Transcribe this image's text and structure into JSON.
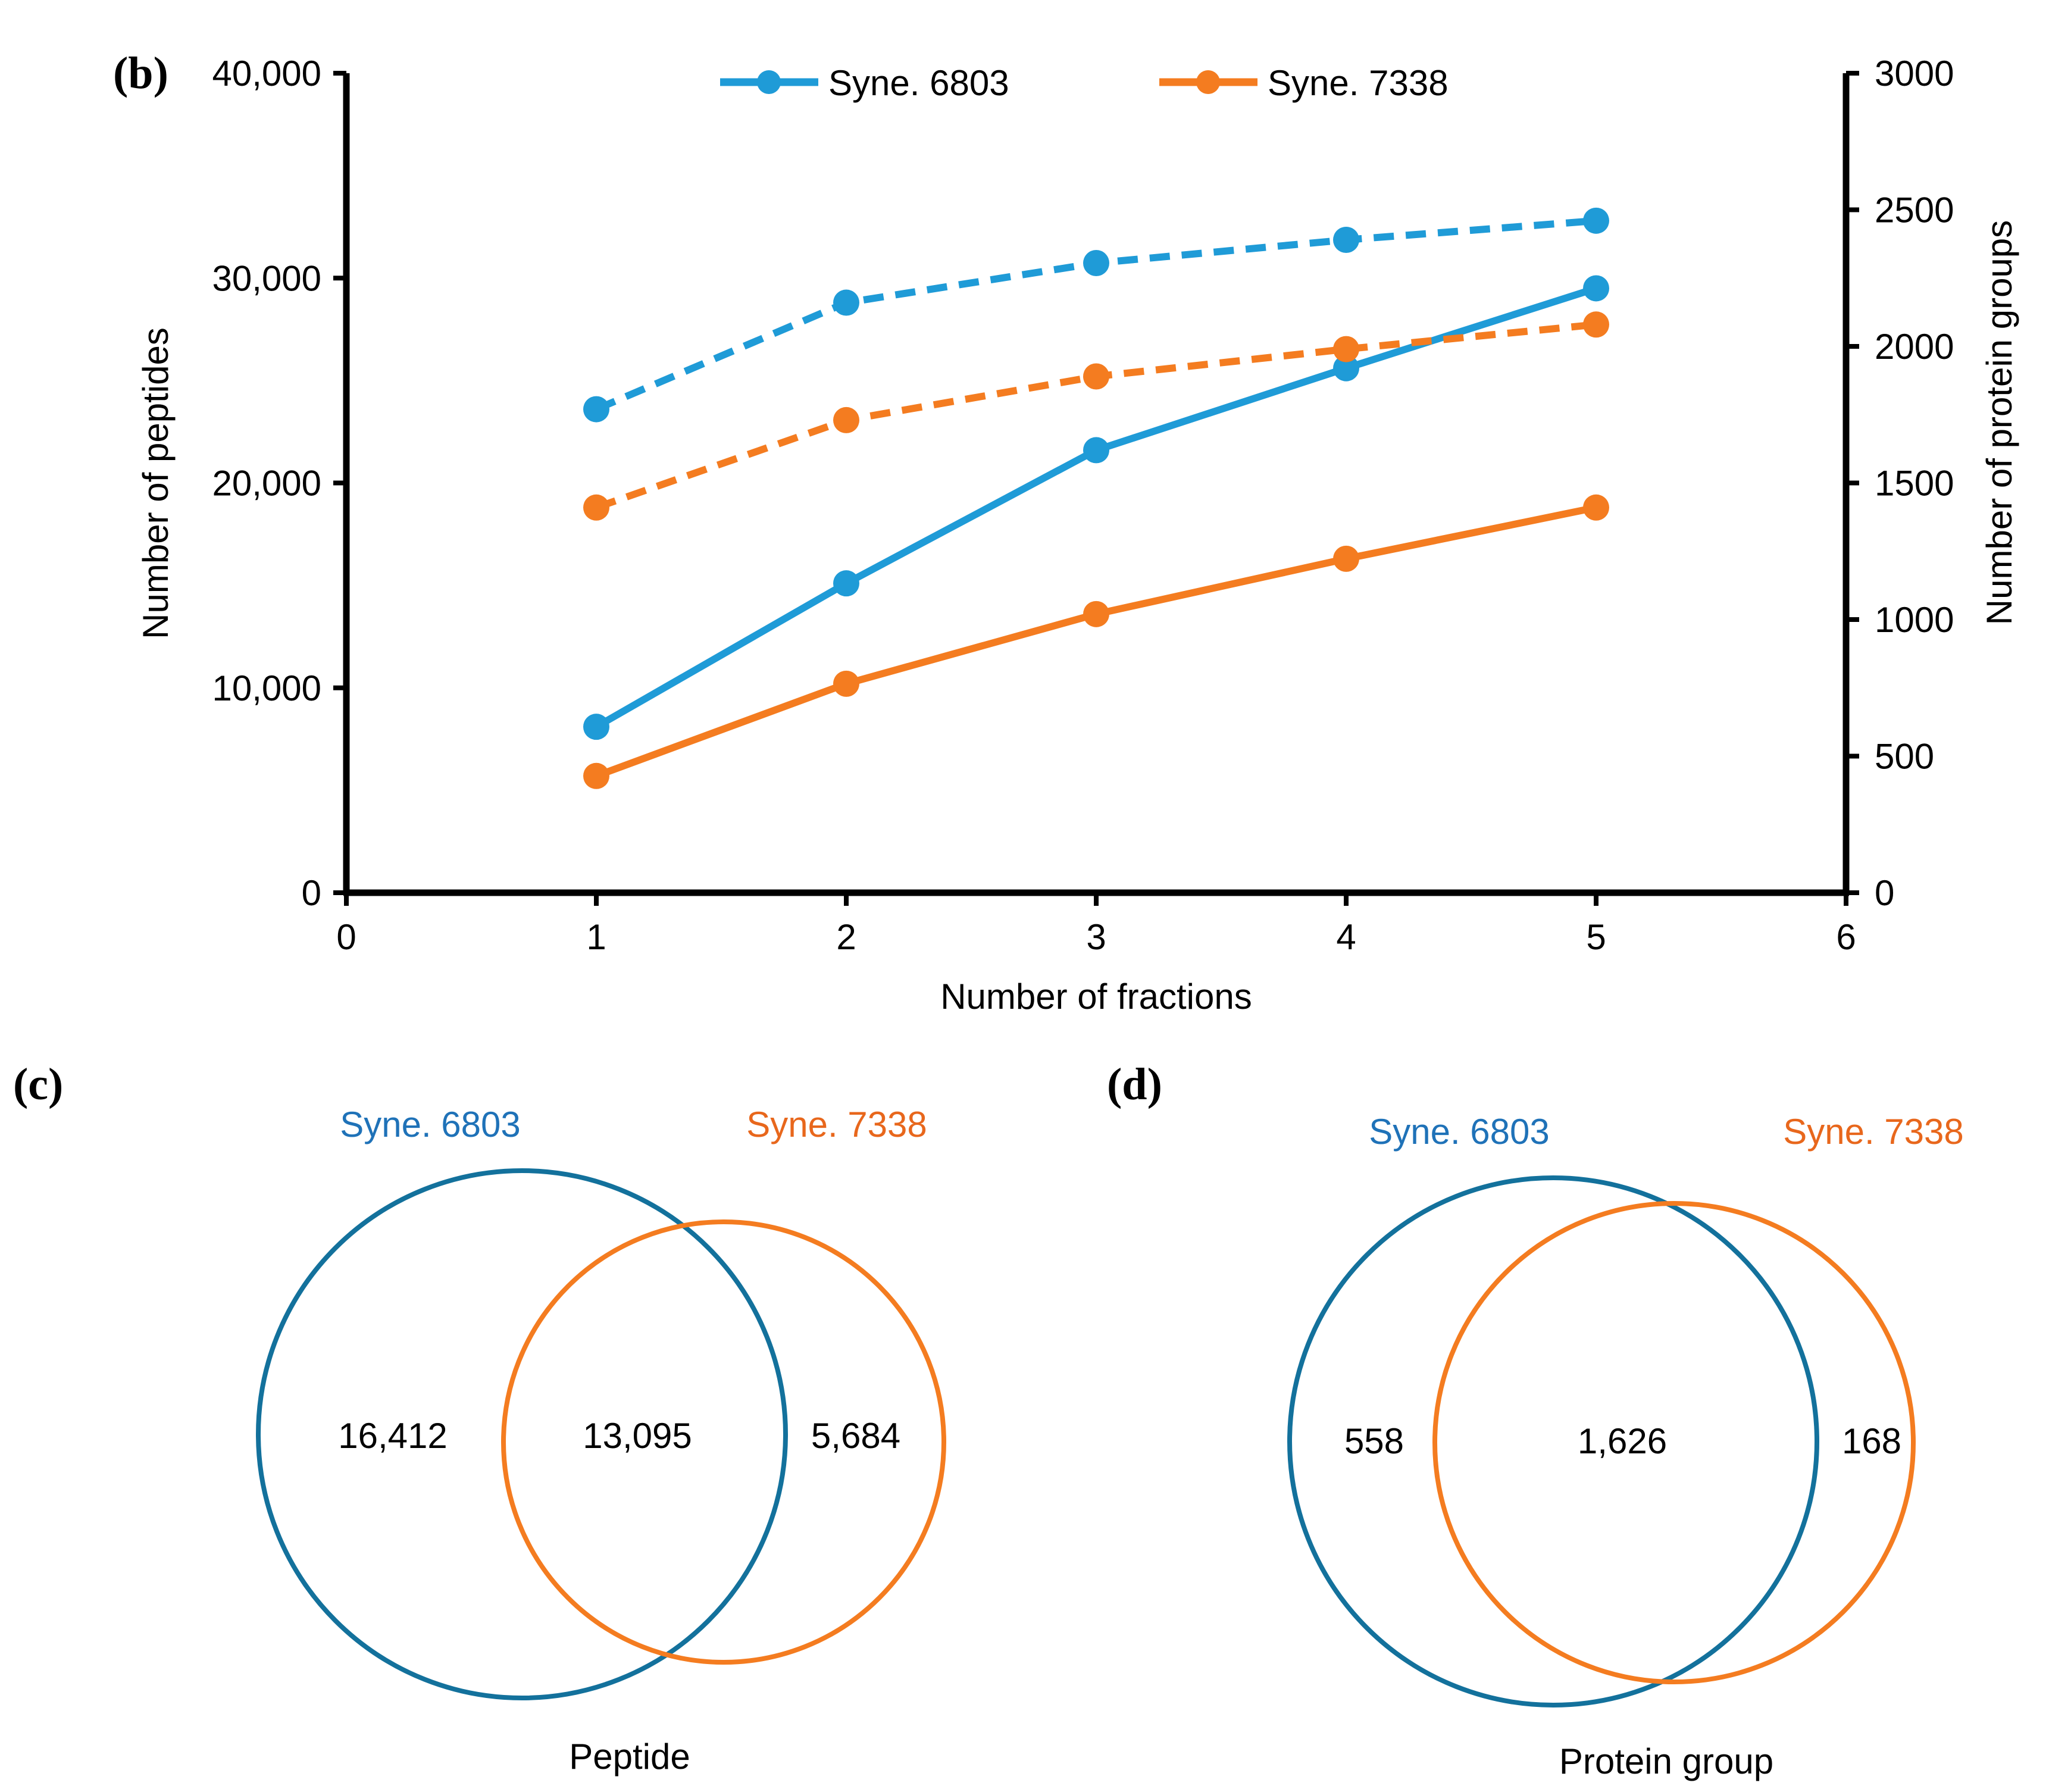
{
  "panels": {
    "b": "(b)",
    "c": "(c)",
    "d": "(d)"
  },
  "colors": {
    "syne6803_line": "#1f9bd7",
    "syne7338_line": "#f47c20",
    "venn_6803": "#13719c",
    "venn_7338": "#f47c20",
    "label_6803": "#1f72b8",
    "label_7338": "#e8671c",
    "axis": "#000000"
  },
  "chart_data": [
    {
      "type": "line",
      "title": "",
      "xlabel": "Number of fractions",
      "ylabel": "Number of peptides",
      "y2label": "Number of protein groups",
      "xlim": [
        0,
        6
      ],
      "ylim": [
        0,
        40000
      ],
      "y2lim": [
        0,
        3000
      ],
      "x_ticks": [
        "0",
        "1",
        "2",
        "3",
        "4",
        "5",
        "6"
      ],
      "y_ticks": [
        "0",
        "10,000",
        "20,000",
        "30,000",
        "40,000"
      ],
      "y2_ticks": [
        "0",
        "500",
        "1000",
        "1500",
        "2000",
        "2500",
        "3000"
      ],
      "legend_position": "top",
      "legend": [
        "Syne. 6803",
        "Syne. 7338"
      ],
      "x": [
        1,
        2,
        3,
        4,
        5
      ],
      "series": [
        {
          "name": "Syne. 6803",
          "metric": "peptides",
          "axis": "left",
          "style": "solid",
          "values": [
            8100,
            15100,
            21600,
            25600,
            29500
          ]
        },
        {
          "name": "Syne. 7338",
          "metric": "peptides",
          "axis": "left",
          "style": "solid",
          "values": [
            5700,
            10200,
            13600,
            16300,
            18800
          ]
        },
        {
          "name": "Syne. 6803",
          "metric": "protein groups",
          "axis": "right",
          "style": "dashed",
          "values": [
            1770,
            2160,
            2305,
            2390,
            2460
          ]
        },
        {
          "name": "Syne. 7338",
          "metric": "protein groups",
          "axis": "right",
          "style": "dashed",
          "values": [
            1410,
            1730,
            1890,
            1990,
            2080
          ]
        }
      ]
    },
    {
      "type": "venn",
      "title": "Peptide",
      "sets": [
        "Syne. 6803",
        "Syne. 7338"
      ],
      "values": {
        "only_a": "16,412",
        "both": "13,095",
        "only_b": "5,684"
      }
    },
    {
      "type": "venn",
      "title": "Protein group",
      "sets": [
        "Syne. 6803",
        "Syne. 7338"
      ],
      "values": {
        "only_a": "558",
        "both": "1,626",
        "only_b": "168"
      }
    }
  ]
}
